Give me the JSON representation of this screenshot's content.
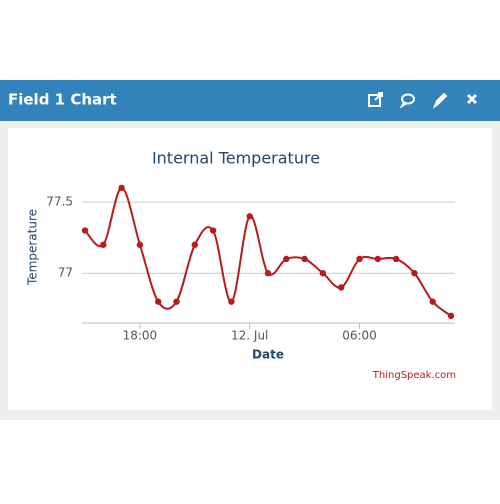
{
  "header": {
    "title": "Field 1 Chart"
  },
  "chart_data": {
    "type": "line",
    "title": "Internal Temperature",
    "x_label": "Date",
    "y_label": "Temperature",
    "credit": "ThingSpeak.com",
    "categories": [
      null,
      null,
      null,
      "18:00",
      null,
      null,
      null,
      null,
      null,
      "12. Jul",
      null,
      null,
      null,
      null,
      null,
      "06:00",
      null,
      null,
      null,
      null,
      null
    ],
    "series": [
      {
        "name": "Field 1",
        "color": "#b71c1c",
        "values": [
          77.3,
          77.2,
          77.6,
          77.2,
          76.8,
          76.8,
          77.2,
          77.3,
          76.8,
          77.4,
          77.0,
          77.1,
          77.1,
          77.0,
          76.9,
          77.1,
          77.1,
          77.1,
          77.0,
          76.8,
          76.7
        ]
      }
    ],
    "ylim": [
      76.65,
      77.75
    ],
    "yticks": [
      77,
      {
        "value": 77.5,
        "label": "77.5"
      }
    ],
    "grid": true
  }
}
